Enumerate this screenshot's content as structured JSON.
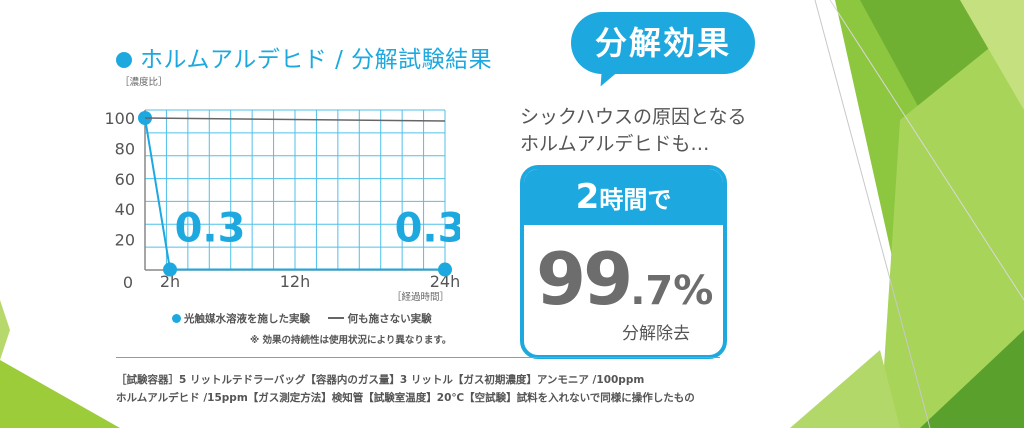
{
  "title": "ホルムアルデヒド / 分解試験結果",
  "bubble": "分解効果",
  "subtitle_lines": [
    "シックハウスの原因となる",
    "ホルムアルデヒドも…"
  ],
  "result": {
    "head_number": "2",
    "head_text": "時間で",
    "value_big": "99",
    "value_small": ".7%",
    "caption": "分解除去"
  },
  "legend": {
    "treated": "光触媒水溶液を施した実験",
    "untreated": "何も施さない実験"
  },
  "note": "※ 効果の持続性は使用状況により異なります。",
  "conditions": [
    "［試験容器］5 リットルテドラーバッグ【容器内のガス量】3 リットル【ガス初期濃度】アンモニア /100ppm",
    "ホルムアルデヒド /15ppm【ガス測定方法】検知管【試験室温度】20℃【空試験】試料を入れないで同様に操作したもの"
  ],
  "colors": {
    "accent": "#1da9df",
    "control_line": "#666666",
    "grid": "#4fc0ea",
    "green_light": "#9ccc3a",
    "green_dark": "#5aa02c"
  },
  "chart_data": {
    "type": "line",
    "ylabel": "［濃度比］",
    "xlabel": "［経過時間］",
    "ylim": [
      0,
      100
    ],
    "y_ticks": [
      "100",
      "80",
      "60",
      "40",
      "20",
      "0"
    ],
    "x_ticks": [
      "2h",
      "12h",
      "24h"
    ],
    "series": [
      {
        "name": "光触媒水溶液を施した実験",
        "x": [
          0,
          2,
          24
        ],
        "values": [
          100,
          0.3,
          0.3
        ],
        "color": "#1da9df"
      },
      {
        "name": "何も施さない実験",
        "x": [
          0,
          24
        ],
        "values": [
          100,
          98
        ],
        "color": "#666666"
      }
    ],
    "annotations": [
      {
        "x": 2,
        "y": 0.3,
        "text": "0.3"
      },
      {
        "x": 24,
        "y": 0.3,
        "text": "0.3"
      }
    ]
  }
}
